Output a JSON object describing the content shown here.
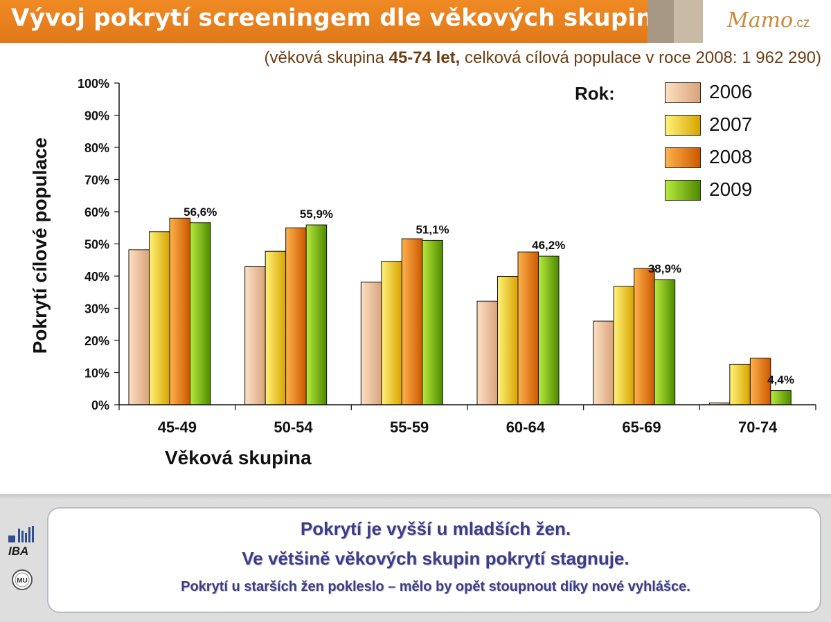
{
  "header": {
    "title": "Vývoj pokrytí screeningem dle věkových skupin",
    "logo_main": "Mamo",
    "logo_suffix": ".cz"
  },
  "subtitle": {
    "prefix": "(věková skupina ",
    "bold": "45-74 let,",
    "suffix": " celková cílová populace v roce 2008: 1 962 290)"
  },
  "chart_data": {
    "type": "bar",
    "categories": [
      "45-49",
      "50-54",
      "55-59",
      "60-64",
      "65-69",
      "70-74"
    ],
    "series": [
      {
        "name": "2006",
        "values": [
          48.2,
          42.9,
          38.1,
          32.2,
          26.0,
          0.6
        ]
      },
      {
        "name": "2007",
        "values": [
          53.8,
          47.7,
          44.6,
          39.9,
          36.8,
          12.6
        ]
      },
      {
        "name": "2008",
        "values": [
          58.0,
          55.0,
          51.6,
          47.5,
          42.4,
          14.5
        ]
      },
      {
        "name": "2009",
        "values": [
          56.6,
          55.9,
          51.1,
          46.2,
          38.9,
          4.4
        ]
      }
    ],
    "data_labels": [
      "56,6%",
      "55,9%",
      "51,1%",
      "46,2%",
      "38,9%",
      "4,4%"
    ],
    "ylabel": "Pokrytí cílové populace",
    "xlabel": "Věková skupina",
    "ylim": [
      0,
      100
    ],
    "yticks": [
      "0%",
      "10%",
      "20%",
      "30%",
      "40%",
      "50%",
      "60%",
      "70%",
      "80%",
      "90%",
      "100%"
    ],
    "legend_title": "Rok:",
    "legend_position": "top-right",
    "grid": false
  },
  "colors": {
    "series": [
      [
        "#fde0c4",
        "#d9a37a"
      ],
      [
        "#fff27a",
        "#d8a400"
      ],
      [
        "#ffb34c",
        "#cc5800"
      ],
      [
        "#b8ea3c",
        "#4f8a00"
      ]
    ],
    "header_orange": "#ee8420",
    "message_text": "#3a3d8c"
  },
  "messages": [
    "Pokrytí je vyšší u mladších žen.",
    "Ve většině věkových skupin pokrytí stagnuje.",
    "Pokrytí u starších žen pokleslo – mělo by opět stoupnout díky nové vyhlášce."
  ],
  "footer_logos": {
    "iba_text": "IBA",
    "mu_text": "MU"
  }
}
